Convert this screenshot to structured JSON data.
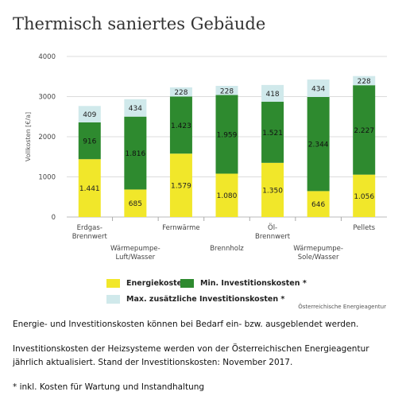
{
  "title": "Thermisch saniertes Gebäude",
  "chart_data": {
    "type": "bar",
    "stacked": true,
    "ylabel": "Vollkosten [€/a]",
    "ylim": [
      0,
      4000
    ],
    "yticks": [
      "0",
      "1000",
      "2000",
      "3000",
      "4000"
    ],
    "grid": true,
    "categories": [
      [
        "Erdgas-",
        "Brennwert"
      ],
      [
        "Wärmepumpe-",
        "Luft/Wasser"
      ],
      [
        "Fernwärme"
      ],
      [
        "Brennholz"
      ],
      [
        "Öl-",
        "Brennwert"
      ],
      [
        "Wärmepumpe-",
        "Sole/Wasser"
      ],
      [
        "Pellets"
      ]
    ],
    "series": [
      {
        "name": "Energiekosten",
        "color": "#f1e72a",
        "values": [
          1441,
          685,
          1579,
          1080,
          1350,
          646,
          1056
        ],
        "labels": [
          "1.441",
          "685",
          "1.579",
          "1.080",
          "1.350",
          "646",
          "1.056"
        ]
      },
      {
        "name": "Min. Investitionskosten *",
        "color": "#2e8a2f",
        "values": [
          916,
          1816,
          1423,
          1959,
          1521,
          2344,
          2227
        ],
        "labels": [
          "916",
          "1.816",
          "1.423",
          "1.959",
          "1.521",
          "2.344",
          "2.227"
        ]
      },
      {
        "name": "Max. zusätzliche Investitionskosten *",
        "color": "#d0e9eb",
        "values": [
          409,
          434,
          228,
          228,
          418,
          434,
          228
        ],
        "labels": [
          "409",
          "434",
          "228",
          "228",
          "418",
          "434",
          "228"
        ]
      }
    ]
  },
  "source": "Österreichische Energieagentur",
  "notes": [
    "Energie- und Investitionskosten können bei Bedarf ein- bzw. ausgeblendet werden.",
    "Investitionskosten der Heizsysteme werden von der Österreichischen Energieagentur",
    "jährlich aktualisiert. Stand der Investitionskosten: November 2017.",
    "* inkl. Kosten für Wartung und Instandhaltung"
  ]
}
